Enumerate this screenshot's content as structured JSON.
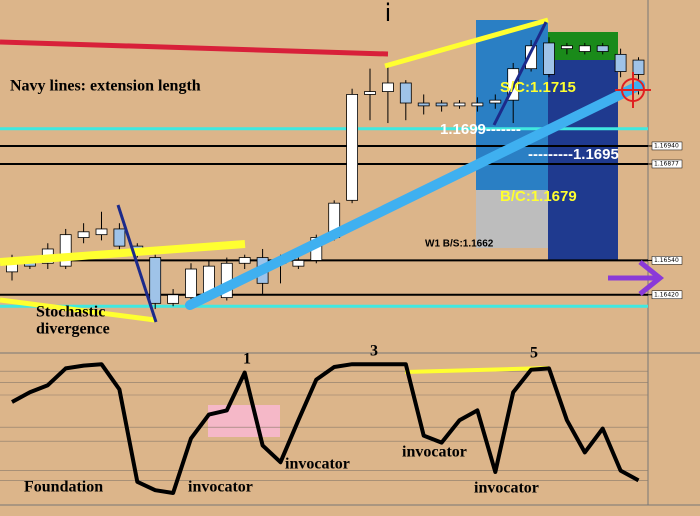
{
  "chart_data": [
    {
      "type": "candlestick",
      "open": [
        1.165,
        1.1654,
        1.1653,
        1.1652,
        1.1662,
        1.1663,
        1.1665,
        1.1659,
        1.1655,
        1.1639,
        1.1641,
        1.1641,
        1.1641,
        1.1653,
        1.1655,
        1.1653,
        1.1652,
        1.1654,
        1.1662,
        1.1675,
        1.1712,
        1.1713,
        1.1716,
        1.1709,
        1.1709,
        1.1708,
        1.1708,
        1.1709,
        1.171,
        1.1721,
        1.173,
        1.1728,
        1.1727,
        1.1729,
        1.1726,
        1.1724
      ],
      "high": [
        1.1656,
        1.1655,
        1.166,
        1.1665,
        1.1667,
        1.1671,
        1.1667,
        1.166,
        1.1656,
        1.1644,
        1.1653,
        1.1654,
        1.1655,
        1.1656,
        1.1658,
        1.1656,
        1.1655,
        1.1663,
        1.1675,
        1.1714,
        1.1721,
        1.1723,
        1.1717,
        1.1712,
        1.171,
        1.171,
        1.1711,
        1.1712,
        1.1723,
        1.1731,
        1.1732,
        1.173,
        1.173,
        1.173,
        1.1728,
        1.1725
      ],
      "low": [
        1.1647,
        1.1651,
        1.1651,
        1.1651,
        1.166,
        1.1661,
        1.1656,
        1.1655,
        1.1637,
        1.1638,
        1.1639,
        1.164,
        1.164,
        1.1651,
        1.1642,
        1.1646,
        1.1651,
        1.1653,
        1.1661,
        1.1674,
        1.1703,
        1.1702,
        1.1703,
        1.1705,
        1.1706,
        1.1707,
        1.1706,
        1.1707,
        1.1702,
        1.172,
        1.1718,
        1.1726,
        1.1726,
        1.1726,
        1.1718,
        1.1712
      ],
      "close": [
        1.1654,
        1.1652,
        1.1658,
        1.1663,
        1.1664,
        1.1665,
        1.1659,
        1.1656,
        1.1639,
        1.1642,
        1.1651,
        1.1652,
        1.1653,
        1.1655,
        1.1646,
        1.1654,
        1.1654,
        1.1662,
        1.1674,
        1.1712,
        1.1713,
        1.1716,
        1.1709,
        1.1708,
        1.1708,
        1.1709,
        1.1709,
        1.171,
        1.1721,
        1.1729,
        1.1719,
        1.1729,
        1.1729,
        1.1727,
        1.172,
        1.1719
      ],
      "up_color": "#ffffff",
      "down_color": "#9fc3e8",
      "ylim": [
        1.1622,
        1.1745
      ],
      "yticks": [
        {
          "value": 1.1694,
          "label": "1.16940"
        },
        {
          "value": 1.16877,
          "label": "1.16877"
        },
        {
          "value": 1.1654,
          "label": "1.16540"
        },
        {
          "value": 1.1642,
          "label": "1.16420"
        }
      ],
      "levels": [
        {
          "value": 1.17,
          "color": "#40e8e0"
        },
        {
          "value": 1.1694,
          "color": "#000000"
        },
        {
          "value": 1.16877,
          "color": "#000000"
        },
        {
          "value": 1.1654,
          "color": "#000000"
        },
        {
          "value": 1.1642,
          "color": "#000000"
        },
        {
          "value": 1.1638,
          "color": "#40e8e0"
        }
      ],
      "annotations": [
        "i",
        "Navy lines: extension length",
        "S/C:1.1715",
        "1.1699-------",
        "---------1.1695",
        "B/C:1.1679",
        "W1 B/S:1.1662",
        "Stochastic",
        "divergence"
      ]
    },
    {
      "type": "line",
      "values": [
        70,
        77,
        82,
        94,
        96,
        97,
        79,
        13,
        7,
        5,
        44,
        61,
        64,
        91,
        39,
        27,
        57,
        86,
        95,
        97,
        97,
        97,
        97,
        46,
        41,
        57,
        64,
        20,
        77,
        93,
        94,
        57,
        34,
        51,
        21,
        14
      ],
      "color": "#000000",
      "ylim": [
        0,
        100
      ],
      "levels": [
        92,
        84,
        75,
        52,
        42,
        21,
        14
      ],
      "annotations": [
        "1",
        "3",
        "5",
        "Foundation",
        "invocator",
        "invocator",
        "invocator",
        "invocator"
      ]
    }
  ]
}
